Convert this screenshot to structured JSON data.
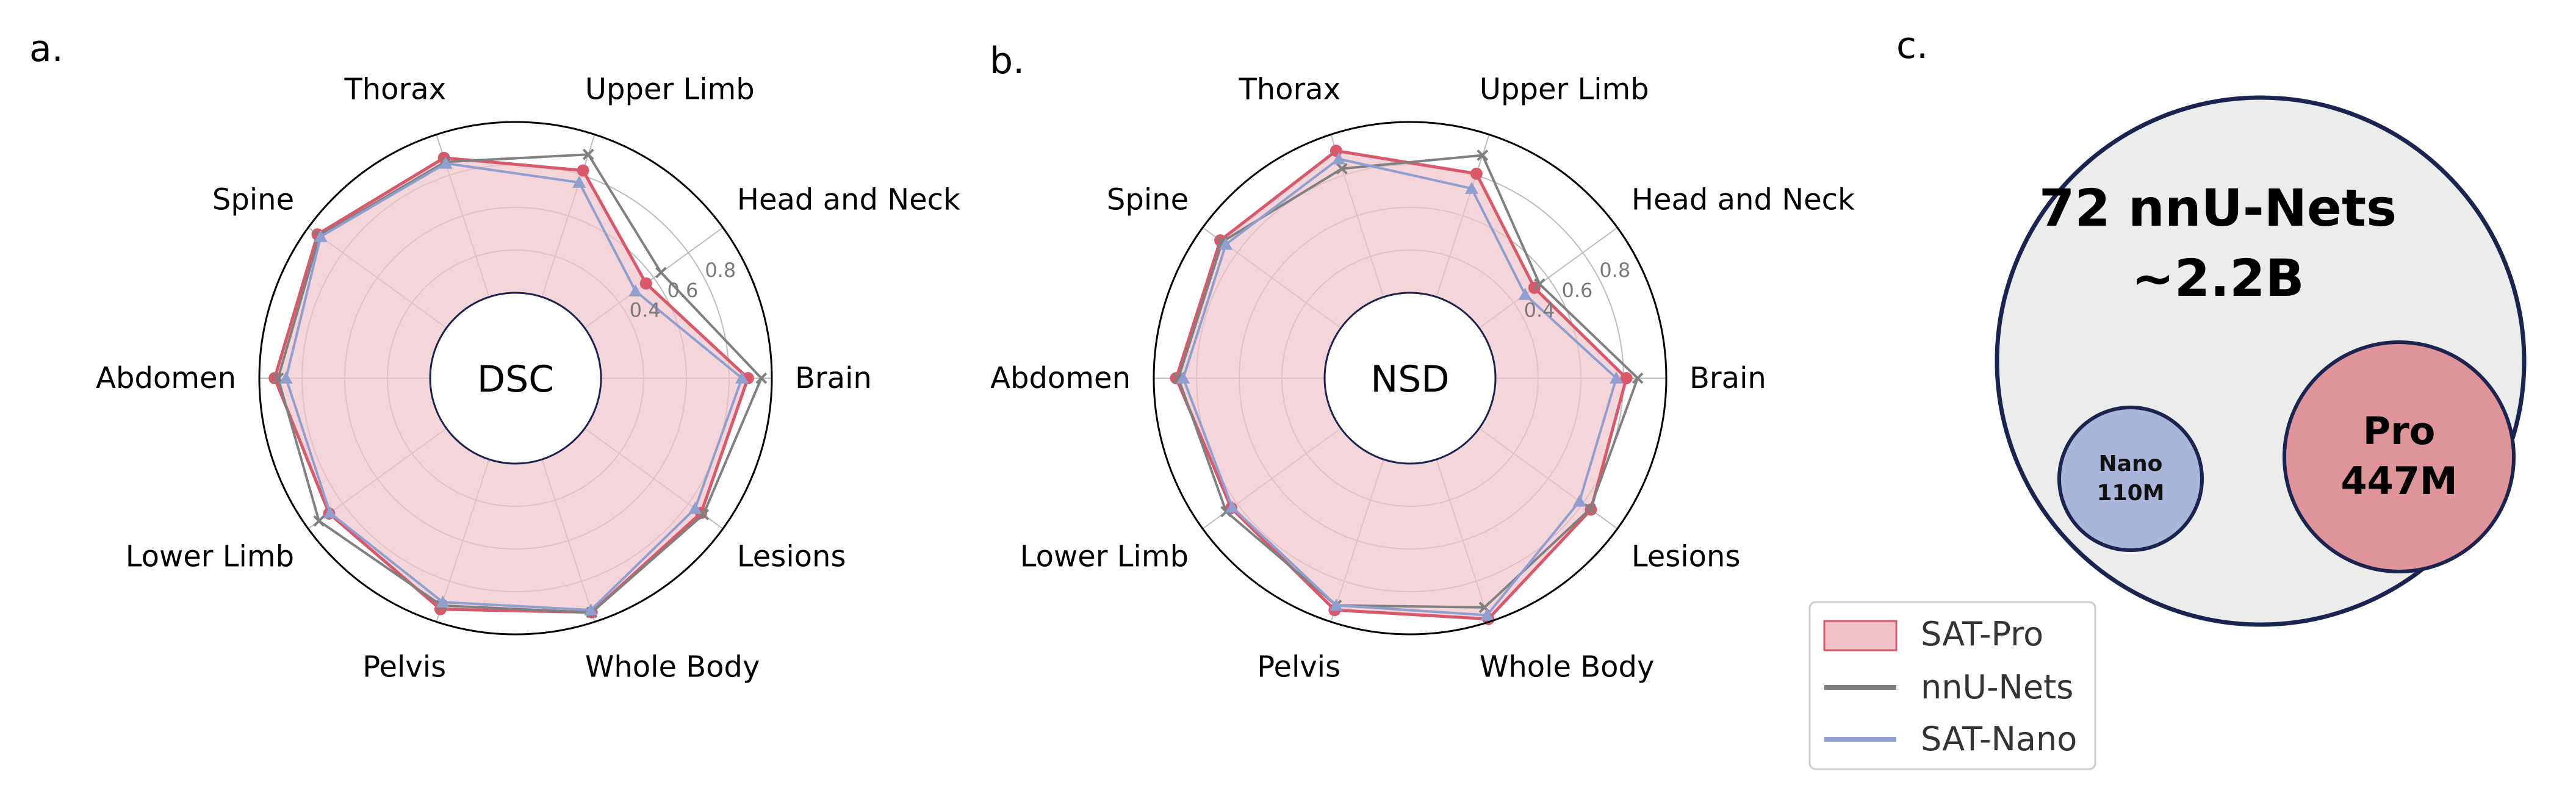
{
  "panels": {
    "a": "a.",
    "b": "b.",
    "c": "c."
  },
  "colors": {
    "sat_pro_line": "#d9596b",
    "sat_pro_fill": "#efc3c9",
    "nnunets_line": "#808080",
    "sat_nano_line": "#8f9fd0",
    "sat_nano_fill": "#a9b5d9",
    "outer_circle_fill": "#ececec",
    "outer_circle_stroke": "#1b2450",
    "pro_circle_fill": "#df949a",
    "grid": "#bdbdbd",
    "tick_text": "#7a7a7a"
  },
  "legend": {
    "items": [
      {
        "label": "SAT-Pro",
        "style": "patch"
      },
      {
        "label": "nnU-Nets",
        "style": "line"
      },
      {
        "label": "SAT-Nano",
        "style": "line"
      }
    ]
  },
  "bubbles": {
    "outer": {
      "line1": "72 nnU-Nets",
      "line2": "~2.2B"
    },
    "nano": {
      "line1": "Nano",
      "line2": "110M"
    },
    "pro": {
      "line1": "Pro",
      "line2": "447M"
    }
  },
  "chart_data": [
    {
      "type": "radar",
      "center_label": "DSC",
      "categories": [
        "Brain",
        "Head and Neck",
        "Upper Limb",
        "Thorax",
        "Spine",
        "Abdomen",
        "Lower Limb",
        "Pelvis",
        "Whole Body",
        "Lesions"
      ],
      "rlim": [
        0.2,
        1.0
      ],
      "rticks": [
        0.4,
        0.6,
        0.8
      ],
      "rtick_labels": [
        "0.4",
        "0.6",
        "0.8"
      ],
      "grid": true,
      "series": [
        {
          "name": "SAT-Pro",
          "values": [
            0.888,
            0.555,
            0.823,
            0.885,
            0.946,
            0.928,
            0.879,
            0.938,
            0.953,
            0.874
          ]
        },
        {
          "name": "nnU-Nets",
          "values": [
            0.951,
            0.642,
            0.902,
            0.865,
            0.935,
            0.912,
            0.938,
            0.92,
            0.954,
            0.887
          ]
        },
        {
          "name": "SAT-Nano",
          "values": [
            0.86,
            0.494,
            0.764,
            0.858,
            0.928,
            0.875,
            0.874,
            0.903,
            0.942,
            0.839
          ]
        }
      ]
    },
    {
      "type": "radar",
      "center_label": "NSD",
      "categories": [
        "Brain",
        "Head and Neck",
        "Upper Limb",
        "Thorax",
        "Spine",
        "Abdomen",
        "Lower Limb",
        "Pelvis",
        "Whole Body",
        "Lesions"
      ],
      "rlim": [
        0.2,
        1.0
      ],
      "rticks": [
        0.4,
        0.6,
        0.8
      ],
      "rtick_labels": [
        "0.4",
        "0.6",
        "0.8"
      ],
      "grid": true,
      "series": [
        {
          "name": "SAT-Pro",
          "values": [
            0.813,
            0.52,
            0.807,
            0.92,
            0.898,
            0.895,
            0.835,
            0.942,
            0.986,
            0.847
          ]
        },
        {
          "name": "nnU-Nets",
          "values": [
            0.866,
            0.55,
            0.898,
            0.832,
            0.887,
            0.885,
            0.864,
            0.919,
            0.929,
            0.842
          ]
        },
        {
          "name": "SAT-Nano",
          "values": [
            0.766,
            0.466,
            0.734,
            0.88,
            0.866,
            0.862,
            0.829,
            0.919,
            0.967,
            0.781
          ]
        }
      ]
    }
  ]
}
